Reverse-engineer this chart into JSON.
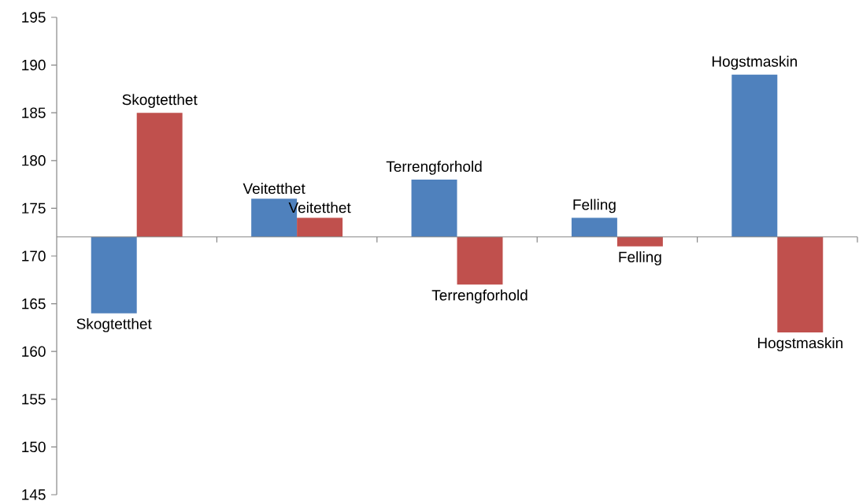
{
  "chart_data": {
    "type": "bar",
    "categories": [
      "Skogtetthet",
      "Veitetthet",
      "Terrengforhold",
      "Felling",
      "Hogstmaskin"
    ],
    "series": [
      {
        "color": "#4f81bd",
        "base": [
          172,
          172,
          172,
          172,
          172
        ],
        "values": [
          -8,
          4,
          6,
          2,
          17
        ]
      },
      {
        "color": "#c0504d",
        "base": [
          172,
          172,
          172,
          172,
          172
        ],
        "values": [
          13,
          2,
          -5,
          -1,
          -10
        ]
      }
    ],
    "ylim": [
      145,
      195
    ],
    "yticks": [
      145,
      150,
      155,
      160,
      165,
      170,
      175,
      180,
      185,
      190,
      195
    ],
    "grid": false
  }
}
